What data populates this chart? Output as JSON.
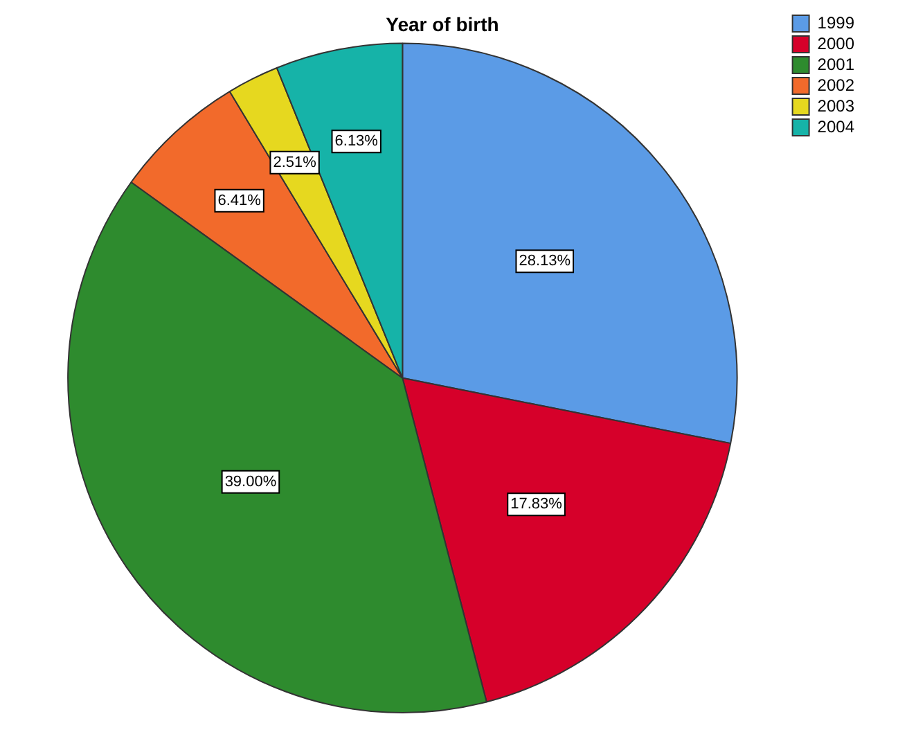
{
  "chart_data": {
    "type": "pie",
    "title": "Year of birth",
    "categories": [
      "1999",
      "2000",
      "2001",
      "2002",
      "2003",
      "2004"
    ],
    "values": [
      28.13,
      17.83,
      39.0,
      6.41,
      2.51,
      6.13
    ],
    "value_labels": [
      "28.13%",
      "17.83%",
      "39.00%",
      "6.41%",
      "2.51%",
      "6.13%"
    ],
    "colors": [
      "#5b9be6",
      "#d6002a",
      "#2e8b2e",
      "#f26a2b",
      "#e6d81f",
      "#16b3a8"
    ],
    "legend": "top right"
  }
}
